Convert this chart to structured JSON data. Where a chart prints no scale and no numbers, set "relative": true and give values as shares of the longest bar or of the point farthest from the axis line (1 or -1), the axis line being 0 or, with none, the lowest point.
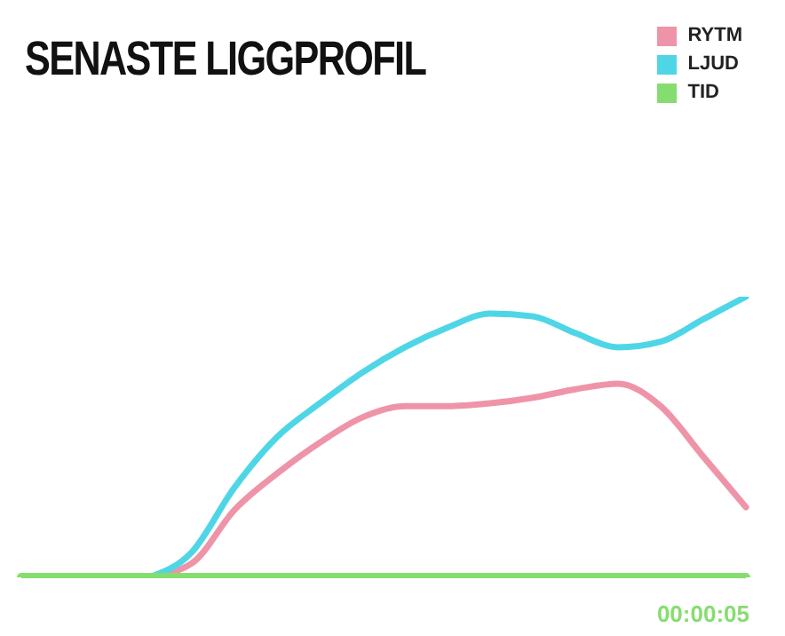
{
  "chart_data": {
    "type": "line",
    "title": "SENASTE LIGGPROFIL",
    "relative": true,
    "categories": [
      null,
      null,
      null,
      null,
      null,
      null,
      null,
      null,
      null,
      null,
      null,
      null,
      null,
      null,
      null,
      null,
      null,
      null
    ],
    "series": [
      {
        "name": "RYTM",
        "color": "#ef94a8",
        "values": [
          null,
          null,
          null,
          0,
          0.05,
          0.24,
          0.37,
          0.48,
          0.57,
          0.61,
          0.61,
          0.62,
          0.64,
          0.67,
          0.69,
          0.61,
          0.43,
          0.25
        ]
      },
      {
        "name": "LJUD",
        "color": "#4fd6e6",
        "values": [
          null,
          null,
          null,
          0,
          0.09,
          0.32,
          0.5,
          0.62,
          0.73,
          0.82,
          0.89,
          0.94,
          0.93,
          0.87,
          0.82,
          0.84,
          0.92,
          1
        ]
      },
      {
        "name": "TID",
        "color": "#86dd6f",
        "values": [
          0,
          0,
          0,
          0,
          0,
          0,
          0,
          0,
          0,
          0,
          0,
          0,
          0,
          0,
          0,
          0,
          0,
          0
        ]
      }
    ],
    "legend": "top right",
    "grid": false,
    "marker": "none",
    "line_style": "solid",
    "annotations": [
      "00:00:05"
    ]
  }
}
